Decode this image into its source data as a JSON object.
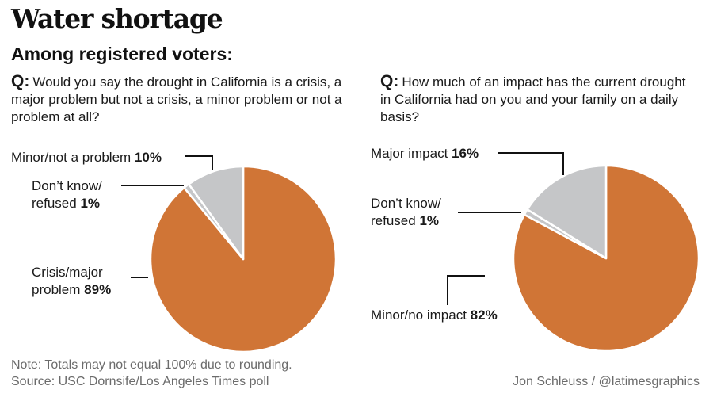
{
  "title": "Water shortage",
  "subtitle": "Among registered voters:",
  "chart_data": [
    {
      "type": "pie",
      "question_prefix": "Q:",
      "question": "Would you say the drought in California is a crisis, a major problem but not a crisis, a minor problem or not a problem at all?",
      "slices": [
        {
          "label": "Crisis/major problem",
          "label_lines": [
            "Crisis/major",
            "problem"
          ],
          "value": 89,
          "value_text": "89%",
          "color": "#d07536"
        },
        {
          "label": "Don’t know/ refused",
          "label_lines": [
            "Don’t know/",
            "refused"
          ],
          "value": 1,
          "value_text": "1%",
          "color": "#c5c6c8"
        },
        {
          "label": "Minor/not a problem",
          "label_lines": [
            "Minor/not a problem"
          ],
          "value": 10,
          "value_text": "10%",
          "color": "#c5c6c8"
        }
      ]
    },
    {
      "type": "pie",
      "question_prefix": "Q:",
      "question": "How much of an impact has the current drought in California had on you and your family on a daily basis?",
      "slices": [
        {
          "label": "Minor/no impact",
          "label_lines": [
            "Minor/no impact"
          ],
          "value": 82,
          "value_text": "82%",
          "color": "#d07536"
        },
        {
          "label": "Don’t know/ refused",
          "label_lines": [
            "Don’t know/",
            "refused"
          ],
          "value": 1,
          "value_text": "1%",
          "color": "#c5c6c8"
        },
        {
          "label": "Major impact",
          "label_lines": [
            "Major impact"
          ],
          "value": 16,
          "value_text": "16%",
          "color": "#c5c6c8"
        }
      ]
    }
  ],
  "footer": {
    "note": "Note: Totals may not equal 100% due to rounding.",
    "source": "Source: USC Dornsife/Los Angeles Times poll",
    "credit": "Jon Schleuss / @latimesgraphics"
  }
}
